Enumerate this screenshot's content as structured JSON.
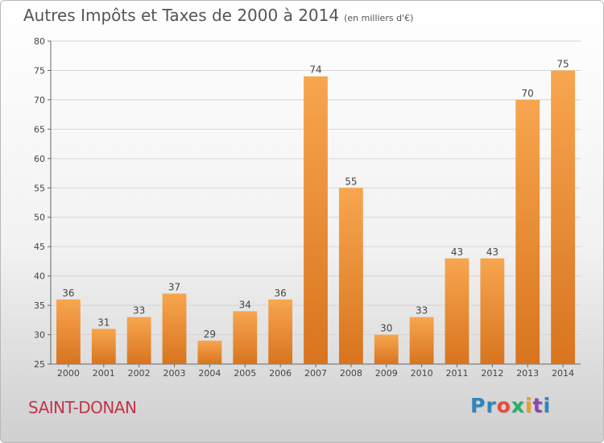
{
  "header": {
    "title": "Autres Impôts et Taxes de 2000 à 2014",
    "subtitle": "(en milliers d'€)"
  },
  "commune": "SAINT-DONAN",
  "logo": {
    "letters": [
      {
        "ch": "P",
        "color": "#2e86c1"
      },
      {
        "ch": "r",
        "color": "#2e86c1"
      },
      {
        "ch": "o",
        "color": "#e74c3c"
      },
      {
        "ch": "x",
        "color": "#27ae60"
      },
      {
        "ch": "i",
        "color": "#f39c12"
      },
      {
        "ch": "t",
        "color": "#8e44ad"
      },
      {
        "ch": "i",
        "color": "#2e86c1"
      }
    ]
  },
  "chart_data": {
    "type": "bar",
    "title": "Autres Impôts et Taxes de 2000 à 2014",
    "subtitle": "(en milliers d'€)",
    "categories": [
      "2000",
      "2001",
      "2002",
      "2003",
      "2004",
      "2005",
      "2006",
      "2007",
      "2008",
      "2009",
      "2010",
      "2011",
      "2012",
      "2013",
      "2014"
    ],
    "values": [
      36,
      31,
      33,
      37,
      29,
      34,
      36,
      74,
      55,
      30,
      33,
      43,
      43,
      70,
      75
    ],
    "ylim": [
      25,
      80
    ],
    "yticks": [
      25,
      30,
      35,
      40,
      45,
      50,
      55,
      60,
      65,
      70,
      75,
      80
    ],
    "grid": true,
    "bar_color_top": "#f7a64f",
    "bar_color_bottom": "#d9741e"
  }
}
